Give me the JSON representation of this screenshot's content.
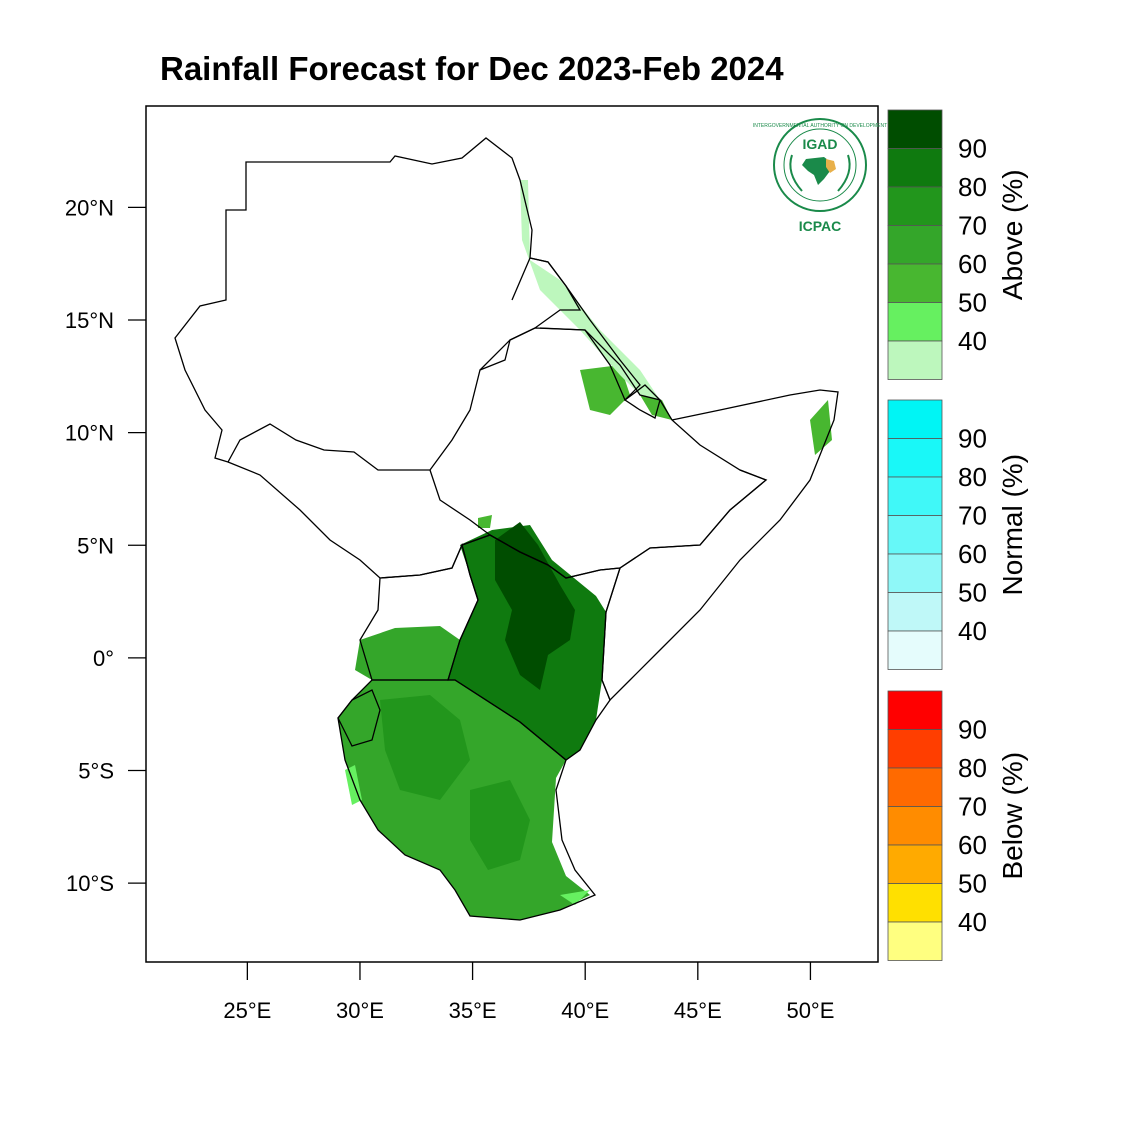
{
  "title": "Rainfall Forecast for Dec 2023-Feb 2024",
  "map": {
    "lat_ticks": [
      {
        "value": 20,
        "label": "20°N"
      },
      {
        "value": 15,
        "label": "15°N"
      },
      {
        "value": 10,
        "label": "10°N"
      },
      {
        "value": 5,
        "label": "5°N"
      },
      {
        "value": 0,
        "label": "0°"
      },
      {
        "value": -5,
        "label": "5°S"
      },
      {
        "value": -10,
        "label": "10°S"
      }
    ],
    "lon_ticks": [
      {
        "value": 25,
        "label": "25°E"
      },
      {
        "value": 30,
        "label": "30°E"
      },
      {
        "value": 35,
        "label": "35°E"
      },
      {
        "value": 40,
        "label": "40°E"
      },
      {
        "value": 45,
        "label": "45°E"
      },
      {
        "value": 50,
        "label": "50°E"
      }
    ],
    "lon_range": [
      20.5,
      53
    ],
    "lat_range": [
      -13.5,
      24.5
    ]
  },
  "logo": {
    "top_text": "IGAD",
    "bottom_text": "ICPAC",
    "ring_text": "INTERGOVERNMENTAL AUTHORITY ON DEVELOPMENT"
  },
  "legends": [
    {
      "id": "above",
      "title": "Above (%)",
      "labels": [
        "90",
        "80",
        "70",
        "60",
        "50",
        "40"
      ],
      "colors": [
        "#004d00",
        "#0f7a0f",
        "#22961c",
        "#34a62a",
        "#48b730",
        "#66f060",
        "#bdf7bd"
      ]
    },
    {
      "id": "normal",
      "title": "Normal (%)",
      "labels": [
        "90",
        "80",
        "70",
        "60",
        "50",
        "40"
      ],
      "colors": [
        "#00f5f5",
        "#19f8f8",
        "#40f8f8",
        "#66f8f8",
        "#8ff8f8",
        "#bff8f8",
        "#e5fcfc"
      ]
    },
    {
      "id": "below",
      "title": "Below (%)",
      "labels": [
        "90",
        "80",
        "70",
        "60",
        "50",
        "40"
      ],
      "colors": [
        "#ff0000",
        "#ff3e00",
        "#ff6a00",
        "#ff8c00",
        "#ffaa00",
        "#ffe000",
        "#ffff80"
      ]
    }
  ]
}
